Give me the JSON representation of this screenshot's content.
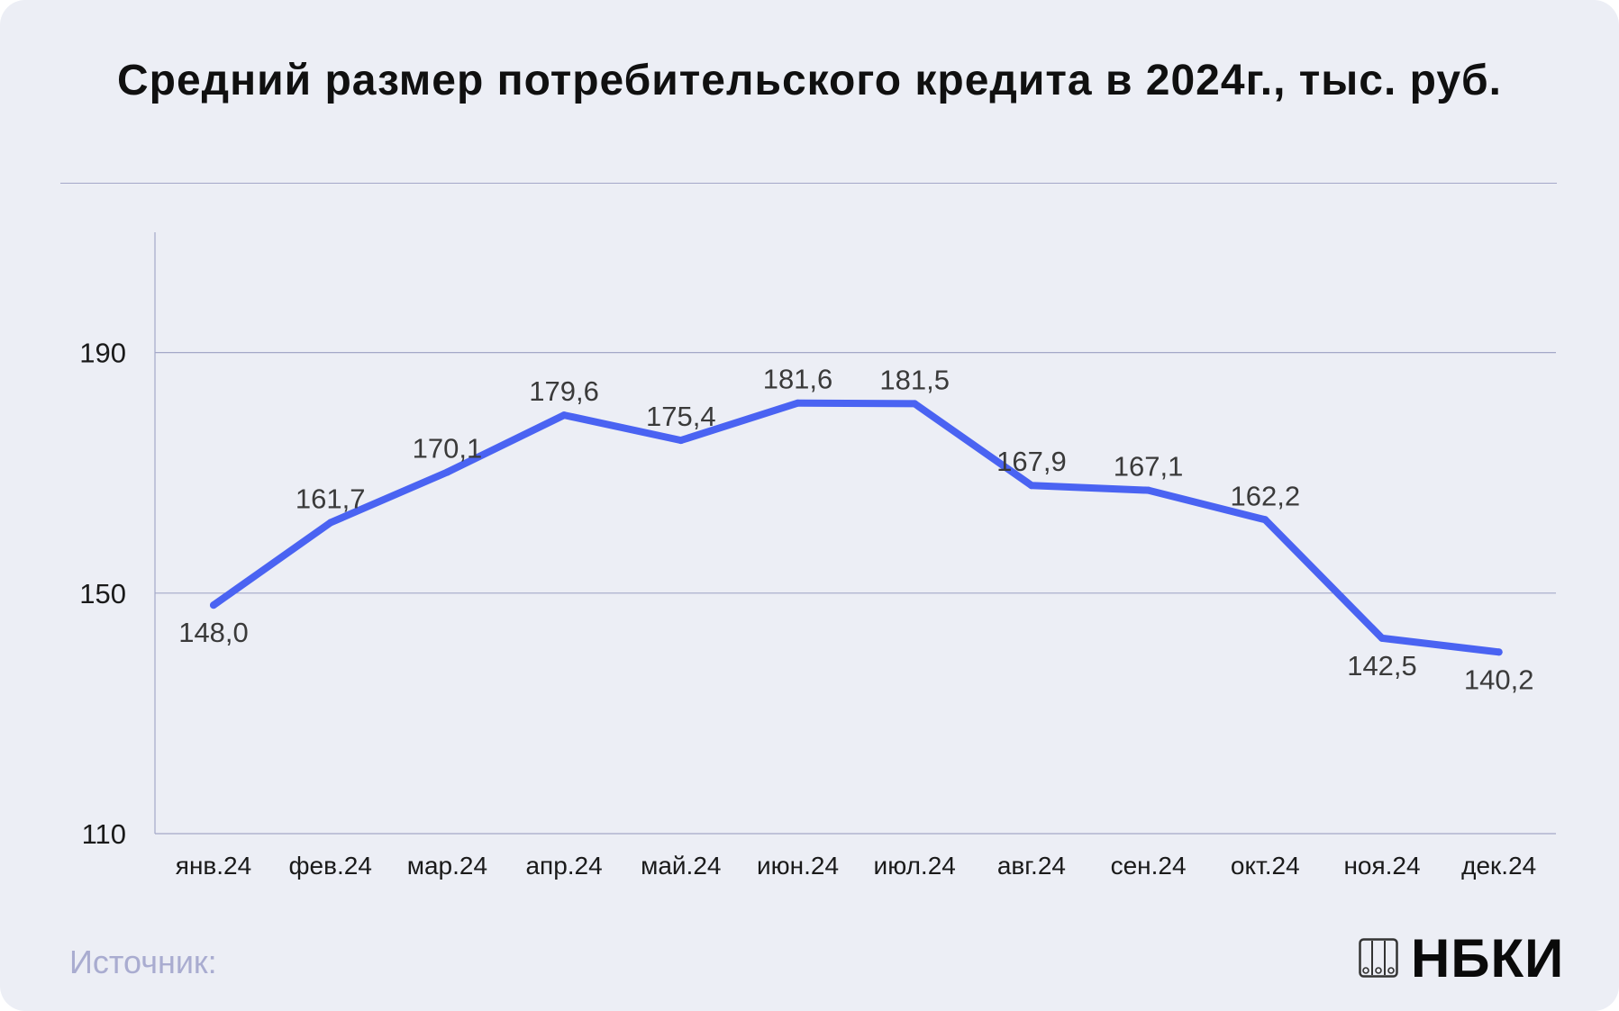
{
  "title": "Средний размер потребительского кредита в 2024г., тыс. руб.",
  "source_label": "Источник:",
  "logo_text": "НБКИ",
  "colors": {
    "background": "#eceef5",
    "line": "#4a63f2",
    "grid": "#a4a8c8",
    "text": "#3a3a3a"
  },
  "chart_data": {
    "type": "line",
    "title": "Средний размер потребительского кредита в 2024г., тыс. руб.",
    "xlabel": "",
    "ylabel": "",
    "categories": [
      "янв.24",
      "фев.24",
      "мар.24",
      "апр.24",
      "май.24",
      "июн.24",
      "июл.24",
      "авг.24",
      "сен.24",
      "окт.24",
      "ноя.24",
      "дек.24"
    ],
    "series": [
      {
        "values": [
          148.0,
          161.7,
          170.1,
          179.6,
          175.4,
          181.6,
          181.5,
          167.9,
          167.1,
          162.2,
          142.5,
          140.2
        ]
      }
    ],
    "data_labels": [
      "148,0",
      "161,7",
      "170,1",
      "179,6",
      "175,4",
      "181,6",
      "181,5",
      "167,9",
      "167,1",
      "162,2",
      "142,5",
      "140,2"
    ],
    "label_placement": [
      "below",
      "above",
      "above",
      "above",
      "above",
      "above",
      "above",
      "above",
      "above",
      "above",
      "below",
      "below"
    ],
    "yticks": [
      110,
      150,
      190
    ],
    "ytick_labels": [
      "110",
      "150",
      "190"
    ],
    "ylim": [
      110,
      210
    ],
    "grid": "horizontal",
    "legend": "none"
  }
}
